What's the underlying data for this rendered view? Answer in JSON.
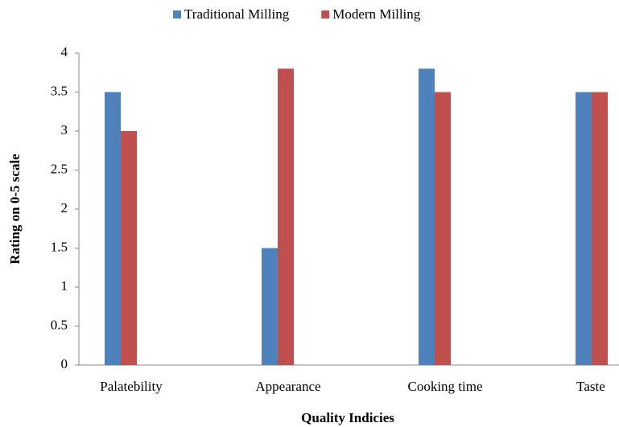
{
  "chart_data": {
    "type": "bar",
    "x_label": "Quality Indicies",
    "y_label": "Rating on 0-5 scale",
    "categories": [
      "Palatebility",
      "Appearance",
      "Cooking time",
      "Taste"
    ],
    "series": [
      {
        "name": "Traditional Milling",
        "color": "#4f81bd",
        "values": [
          3.5,
          1.5,
          3.8,
          3.5
        ]
      },
      {
        "name": "Modern Milling",
        "color": "#c0504d",
        "values": [
          3,
          3.8,
          3.5,
          3.5
        ]
      }
    ],
    "ylim": [
      0,
      4
    ],
    "yticks": [
      0,
      0.5,
      1,
      1.5,
      2,
      2.5,
      3,
      3.5,
      4
    ],
    "grid": false,
    "legend": "top"
  }
}
